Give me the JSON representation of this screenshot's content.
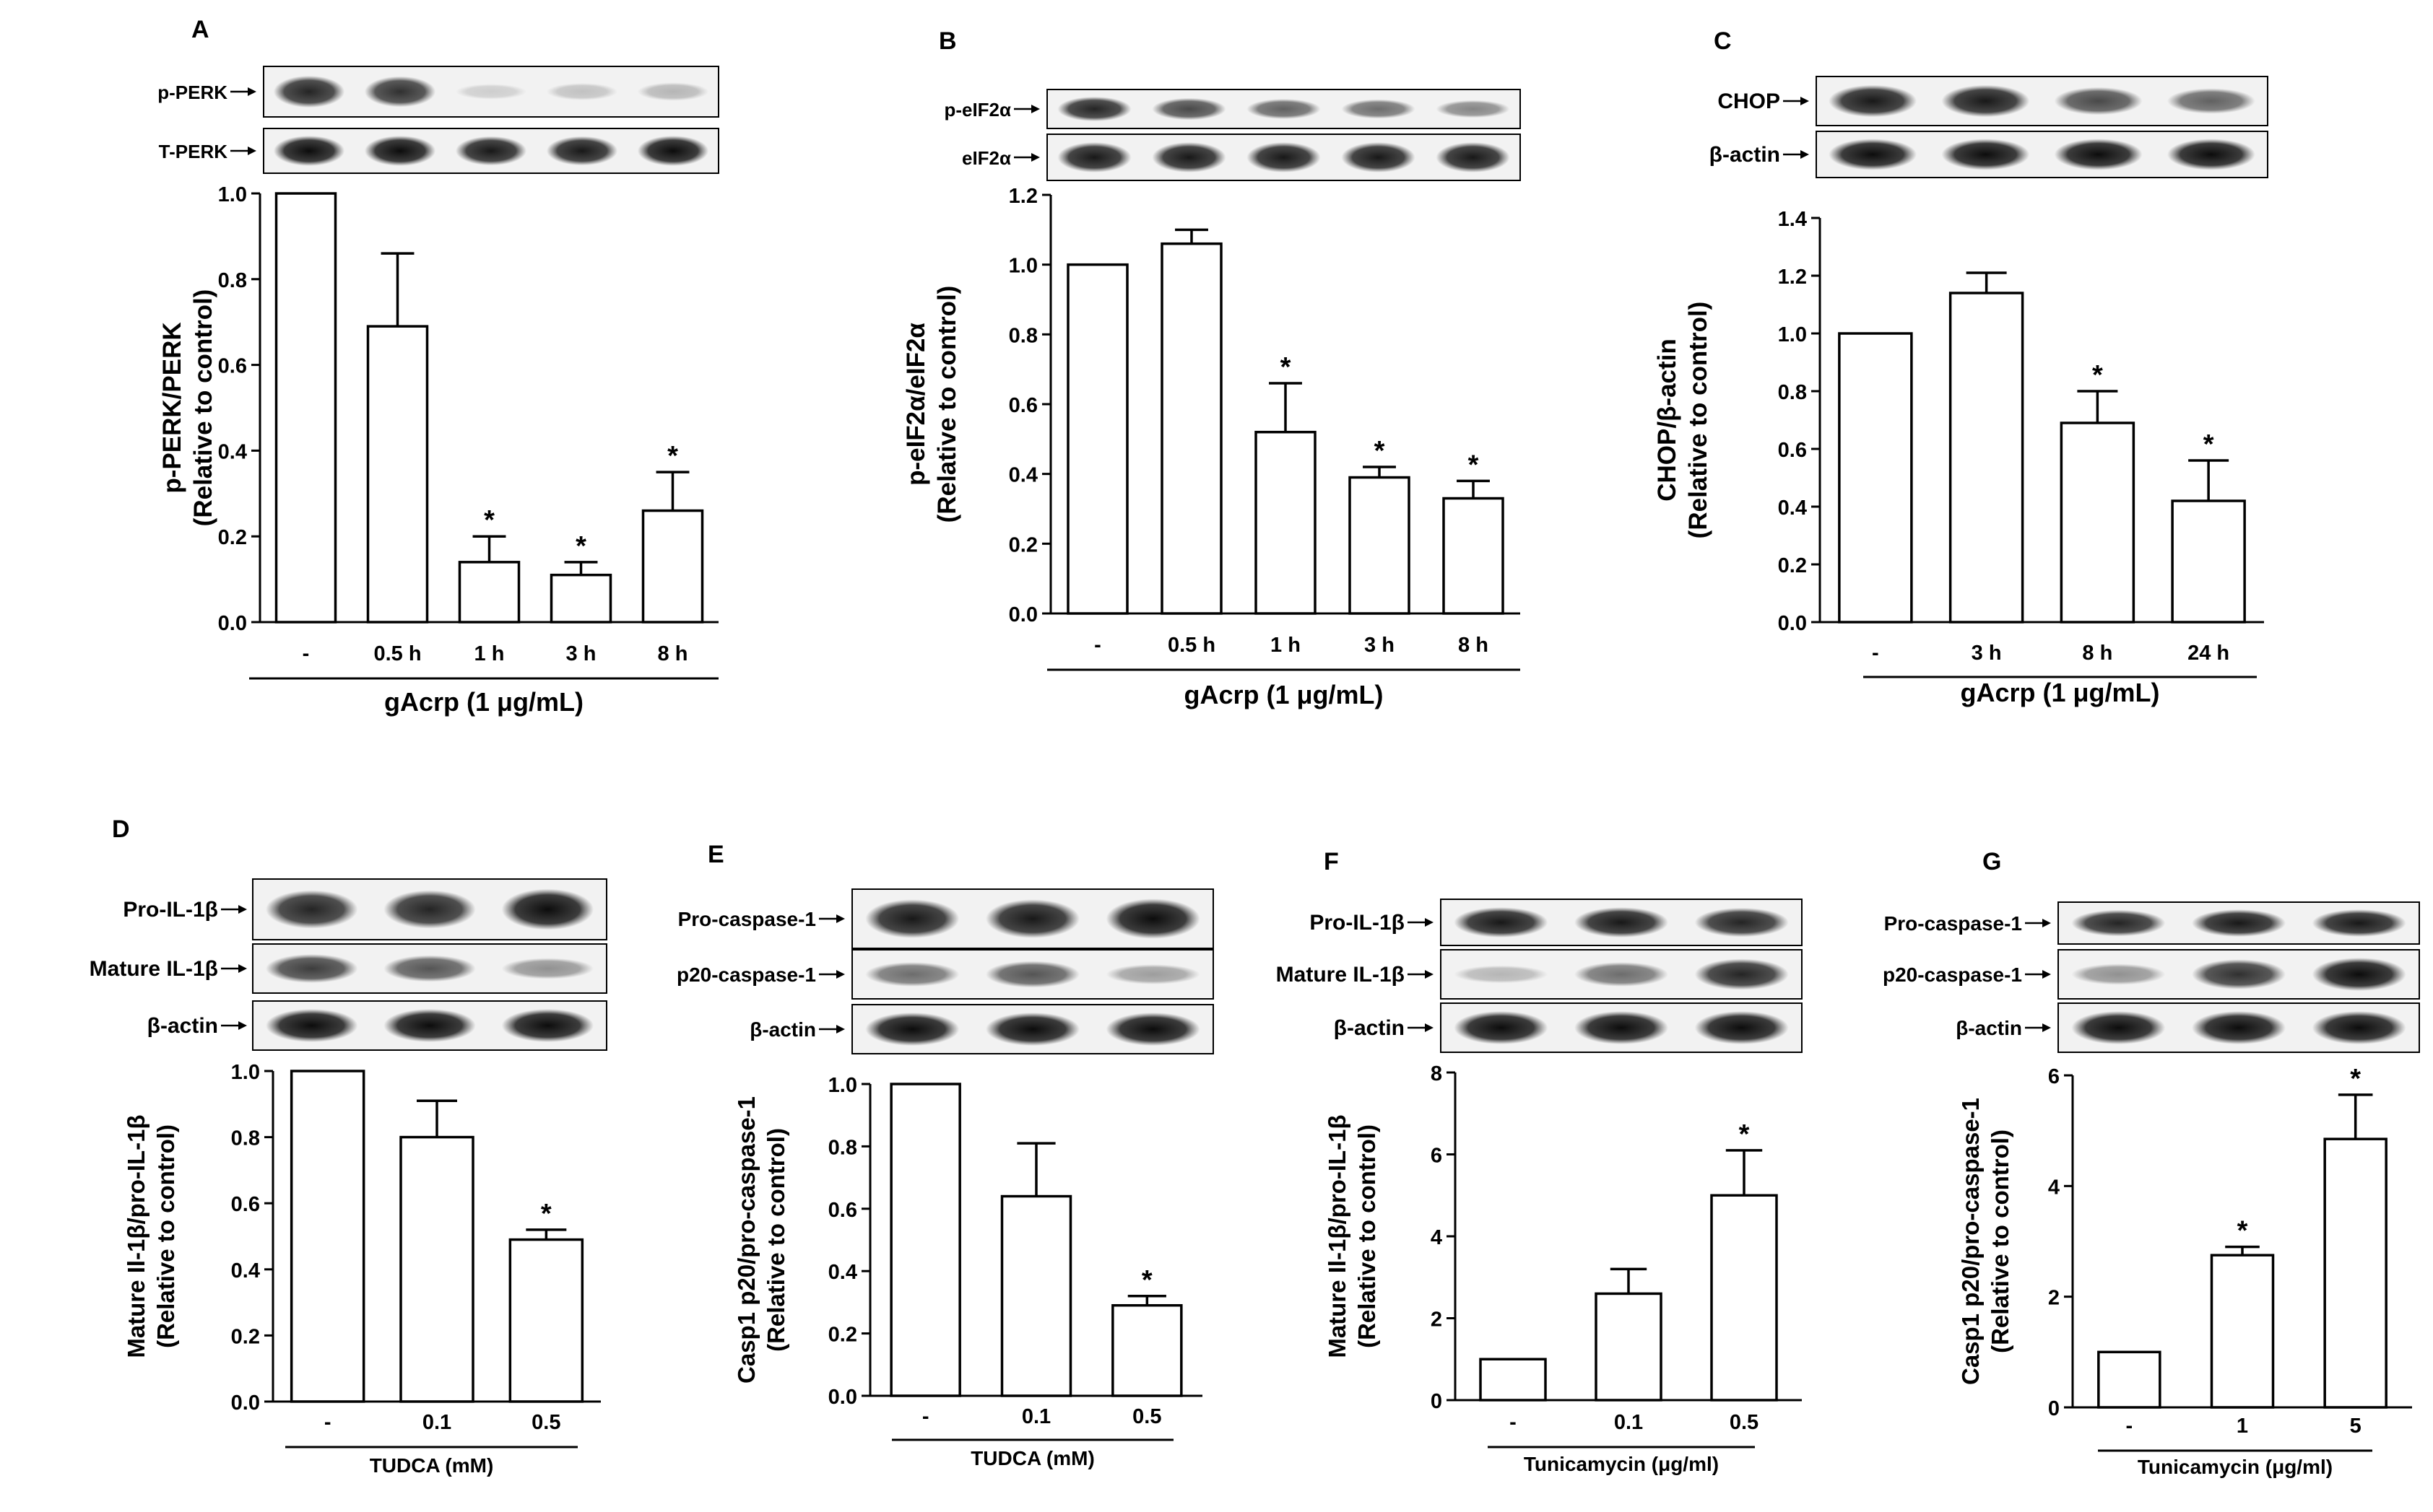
{
  "chart_data": [
    {
      "panel": "A",
      "type": "bar",
      "blot_labels": [
        "p-PERK",
        "T-PERK"
      ],
      "blot_intensities": [
        [
          0.85,
          0.8,
          0.12,
          0.2,
          0.25
        ],
        [
          0.95,
          0.95,
          0.9,
          0.9,
          0.95
        ]
      ],
      "ylabel": [
        "p-PERK/PERK",
        "(Relative to control)"
      ],
      "xlabel": "gAcrp (1 μg/mL)",
      "categories": [
        "-",
        "0.5 h",
        "1 h",
        "3 h",
        "8 h"
      ],
      "values": [
        1.0,
        0.69,
        0.14,
        0.11,
        0.26
      ],
      "errors": [
        0,
        0.17,
        0.06,
        0.03,
        0.09
      ],
      "significant": [
        "",
        "",
        "*",
        "*",
        "*"
      ],
      "ylim": [
        0,
        1.0
      ],
      "yticks": [
        "0.0",
        "0.2",
        "0.4",
        "0.6",
        "0.8",
        "1.0"
      ]
    },
    {
      "panel": "B",
      "type": "bar",
      "blot_labels": [
        "p-eIF2α",
        "eIF2α"
      ],
      "blot_intensities": [
        [
          0.85,
          0.7,
          0.6,
          0.55,
          0.45
        ],
        [
          0.9,
          0.9,
          0.9,
          0.9,
          0.9
        ]
      ],
      "ylabel": [
        "p-eIF2α/eIF2α",
        "(Relative to control)"
      ],
      "xlabel": "gAcrp (1 μg/mL)",
      "categories": [
        "-",
        "0.5 h",
        "1 h",
        "3 h",
        "8 h"
      ],
      "values": [
        1.0,
        1.06,
        0.52,
        0.39,
        0.33
      ],
      "errors": [
        0,
        0.04,
        0.14,
        0.03,
        0.05
      ],
      "significant": [
        "",
        "",
        "*",
        "*",
        "*"
      ],
      "ylim": [
        0,
        1.2
      ],
      "yticks": [
        "0.0",
        "0.2",
        "0.4",
        "0.6",
        "0.8",
        "1.0",
        "1.2"
      ]
    },
    {
      "panel": "C",
      "type": "bar",
      "blot_labels": [
        "CHOP",
        "β-actin"
      ],
      "blot_intensities": [
        [
          0.9,
          0.9,
          0.7,
          0.6
        ],
        [
          0.95,
          0.95,
          0.95,
          0.95
        ]
      ],
      "ylabel": [
        "CHOP/β-actin",
        "(Relative to control)"
      ],
      "xlabel": "gAcrp (1 μg/mL)",
      "categories": [
        "-",
        "3 h",
        "8 h",
        "24 h"
      ],
      "values": [
        1.0,
        1.14,
        0.69,
        0.42
      ],
      "errors": [
        0,
        0.07,
        0.11,
        0.14
      ],
      "significant": [
        "",
        "",
        "*",
        "*"
      ],
      "ylim": [
        0,
        1.4
      ],
      "yticks": [
        "0.0",
        "0.2",
        "0.4",
        "0.6",
        "0.8",
        "1.0",
        "1.2",
        "1.4"
      ]
    },
    {
      "panel": "D",
      "type": "bar",
      "blot_labels": [
        "Pro-IL-1β",
        "Mature IL-1β",
        "β-actin"
      ],
      "blot_intensities": [
        [
          0.85,
          0.85,
          0.95
        ],
        [
          0.75,
          0.65,
          0.4
        ],
        [
          0.95,
          0.95,
          0.95
        ]
      ],
      "ylabel": [
        "Mature Il-1β/pro-IL-1β",
        "(Relative to control)"
      ],
      "xlabel": "TUDCA (mM)",
      "categories": [
        "-",
        "0.1",
        "0.5"
      ],
      "values": [
        1.0,
        0.8,
        0.49
      ],
      "errors": [
        0,
        0.11,
        0.03
      ],
      "significant": [
        "",
        "",
        "*"
      ],
      "ylim": [
        0,
        1.0
      ],
      "yticks": [
        "0.0",
        "0.2",
        "0.4",
        "0.6",
        "0.8",
        "1.0"
      ]
    },
    {
      "panel": "E",
      "type": "bar",
      "blot_labels": [
        "Pro-caspase-1",
        "p20-caspase-1",
        "β-actin"
      ],
      "blot_intensities": [
        [
          0.9,
          0.9,
          0.95
        ],
        [
          0.55,
          0.65,
          0.35
        ],
        [
          0.95,
          0.95,
          0.95
        ]
      ],
      "ylabel": [
        "Casp1 p20/pro-caspase-1",
        "(Relative to control)"
      ],
      "xlabel": "TUDCA (mM)",
      "categories": [
        "-",
        "0.1",
        "0.5"
      ],
      "values": [
        1.0,
        0.64,
        0.29
      ],
      "errors": [
        0,
        0.17,
        0.03
      ],
      "significant": [
        "",
        "",
        "*"
      ],
      "ylim": [
        0,
        1.0
      ],
      "yticks": [
        "0.0",
        "0.2",
        "0.4",
        "0.6",
        "0.8",
        "1.0"
      ]
    },
    {
      "panel": "F",
      "type": "bar",
      "blot_labels": [
        "Pro-IL-1β",
        "Mature IL-1β",
        "β-actin"
      ],
      "blot_intensities": [
        [
          0.9,
          0.9,
          0.85
        ],
        [
          0.25,
          0.55,
          0.85
        ],
        [
          0.95,
          0.95,
          0.95
        ]
      ],
      "ylabel": [
        "Mature Il-1β/pro-IL-1β",
        "(Relative to control)"
      ],
      "xlabel": "Tunicamycin (μg/ml)",
      "categories": [
        "-",
        "0.1",
        "0.5"
      ],
      "values": [
        1.0,
        2.6,
        5.0
      ],
      "errors": [
        0,
        0.6,
        1.1
      ],
      "significant": [
        "",
        "",
        "*"
      ],
      "ylim": [
        0,
        8
      ],
      "yticks": [
        "0",
        "2",
        "4",
        "6",
        "8"
      ]
    },
    {
      "panel": "G",
      "type": "bar",
      "blot_labels": [
        "Pro-caspase-1",
        "p20-caspase-1",
        "β-actin"
      ],
      "blot_intensities": [
        [
          0.85,
          0.9,
          0.9
        ],
        [
          0.4,
          0.8,
          0.95
        ],
        [
          0.95,
          0.95,
          0.95
        ]
      ],
      "ylabel": [
        "Casp1 p20/pro-caspase-1",
        "(Relative to control)"
      ],
      "xlabel": "Tunicamycin (μg/ml)",
      "categories": [
        "-",
        "1",
        "5"
      ],
      "values": [
        1.0,
        2.75,
        4.85
      ],
      "errors": [
        0,
        0.15,
        0.8
      ],
      "significant": [
        "",
        "*",
        "*"
      ],
      "ylim": [
        0,
        6
      ],
      "yticks": [
        "0",
        "2",
        "4",
        "6"
      ]
    }
  ]
}
